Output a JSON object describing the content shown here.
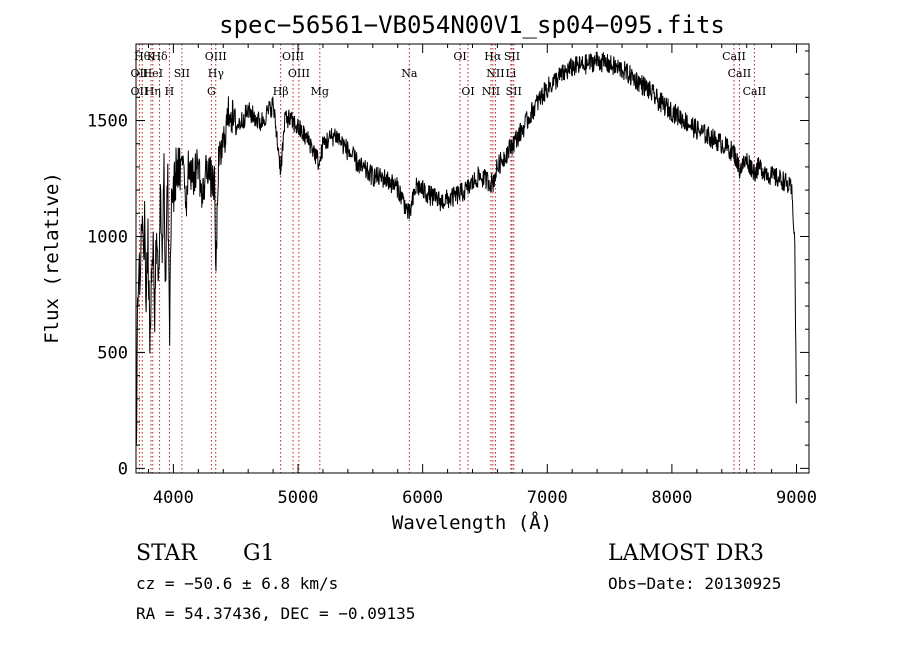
{
  "chart_data": {
    "type": "line",
    "title": "spec−56561−VB054N00V1_sp04−095.fits",
    "xlabel": "Wavelength (Å)",
    "ylabel": "Flux (relative)",
    "xlim": [
      3700,
      9100
    ],
    "ylim": [
      -20,
      1830
    ],
    "xticks": [
      4000,
      5000,
      6000,
      7000,
      8000,
      9000
    ],
    "yticks": [
      0,
      500,
      1000,
      1500
    ],
    "grid": false,
    "color": "#000000",
    "line_color": "#b22222",
    "series": [
      {
        "name": "flux",
        "anchors": [
          [
            3700,
            200
          ],
          [
            3705,
            0
          ],
          [
            3710,
            650
          ],
          [
            3720,
            900
          ],
          [
            3735,
            800
          ],
          [
            3750,
            1150
          ],
          [
            3760,
            900
          ],
          [
            3770,
            1060
          ],
          [
            3780,
            720
          ],
          [
            3795,
            1000
          ],
          [
            3810,
            560
          ],
          [
            3825,
            870
          ],
          [
            3840,
            1000
          ],
          [
            3850,
            640
          ],
          [
            3865,
            1060
          ],
          [
            3880,
            820
          ],
          [
            3895,
            1150
          ],
          [
            3910,
            860
          ],
          [
            3925,
            1300
          ],
          [
            3933,
            720
          ],
          [
            3945,
            1050
          ],
          [
            3955,
            1250
          ],
          [
            3968,
            530
          ],
          [
            3985,
            1200
          ],
          [
            4000,
            1180
          ],
          [
            4030,
            1320
          ],
          [
            4060,
            1250
          ],
          [
            4080,
            1380
          ],
          [
            4102,
            1130
          ],
          [
            4120,
            1320
          ],
          [
            4160,
            1250
          ],
          [
            4200,
            1330
          ],
          [
            4230,
            1150
          ],
          [
            4270,
            1320
          ],
          [
            4300,
            1250
          ],
          [
            4330,
            1220
          ],
          [
            4341,
            820
          ],
          [
            4360,
            1300
          ],
          [
            4400,
            1400
          ],
          [
            4450,
            1550
          ],
          [
            4500,
            1470
          ],
          [
            4550,
            1500
          ],
          [
            4600,
            1540
          ],
          [
            4700,
            1490
          ],
          [
            4800,
            1570
          ],
          [
            4861,
            1290
          ],
          [
            4900,
            1520
          ],
          [
            5000,
            1470
          ],
          [
            5100,
            1400
          ],
          [
            5175,
            1310
          ],
          [
            5200,
            1400
          ],
          [
            5300,
            1440
          ],
          [
            5400,
            1370
          ],
          [
            5500,
            1300
          ],
          [
            5600,
            1260
          ],
          [
            5700,
            1250
          ],
          [
            5800,
            1210
          ],
          [
            5893,
            1090
          ],
          [
            5950,
            1220
          ],
          [
            6050,
            1180
          ],
          [
            6150,
            1150
          ],
          [
            6250,
            1170
          ],
          [
            6350,
            1200
          ],
          [
            6450,
            1260
          ],
          [
            6563,
            1230
          ],
          [
            6600,
            1300
          ],
          [
            6700,
            1380
          ],
          [
            6800,
            1460
          ],
          [
            6900,
            1560
          ],
          [
            7000,
            1640
          ],
          [
            7100,
            1690
          ],
          [
            7200,
            1730
          ],
          [
            7300,
            1740
          ],
          [
            7400,
            1760
          ],
          [
            7500,
            1740
          ],
          [
            7600,
            1720
          ],
          [
            7700,
            1680
          ],
          [
            7800,
            1640
          ],
          [
            7900,
            1580
          ],
          [
            8000,
            1540
          ],
          [
            8100,
            1500
          ],
          [
            8200,
            1460
          ],
          [
            8300,
            1430
          ],
          [
            8400,
            1400
          ],
          [
            8500,
            1360
          ],
          [
            8542,
            1290
          ],
          [
            8600,
            1330
          ],
          [
            8662,
            1280
          ],
          [
            8700,
            1300
          ],
          [
            8800,
            1260
          ],
          [
            8900,
            1240
          ],
          [
            8960,
            1200
          ],
          [
            8985,
            1000
          ],
          [
            9000,
            200
          ]
        ]
      }
    ],
    "lines_top": [
      {
        "wl": 3750,
        "label": "Hθ"
      },
      {
        "wl": 3820,
        "label": "K"
      },
      {
        "wl": 3889,
        "label": "Hδ"
      },
      {
        "wl": 4340,
        "label": "OIII"
      },
      {
        "wl": 4960,
        "label": "OIII"
      },
      {
        "wl": 6300,
        "label": "OI"
      },
      {
        "wl": 6563,
        "label": "Hα"
      },
      {
        "wl": 6717,
        "label": "SII"
      },
      {
        "wl": 8498,
        "label": "CaII"
      }
    ],
    "lines_mid": [
      {
        "wl": 3727,
        "label": "OII"
      },
      {
        "wl": 3835,
        "label": "HeI"
      },
      {
        "wl": 4068,
        "label": "SII"
      },
      {
        "wl": 4341,
        "label": "Hγ"
      },
      {
        "wl": 5007,
        "label": "OIII"
      },
      {
        "wl": 5893,
        "label": "Na"
      },
      {
        "wl": 6584,
        "label": "NII"
      },
      {
        "wl": 6708,
        "label": "Li"
      },
      {
        "wl": 8542,
        "label": "CaII"
      }
    ],
    "lines_low": [
      {
        "wl": 3727,
        "label": "OII"
      },
      {
        "wl": 3835,
        "label": "Hη"
      },
      {
        "wl": 3968,
        "label": "H"
      },
      {
        "wl": 4305,
        "label": "G"
      },
      {
        "wl": 4861,
        "label": "Hβ"
      },
      {
        "wl": 5175,
        "label": "Mg"
      },
      {
        "wl": 6364,
        "label": "OI"
      },
      {
        "wl": 6548,
        "label": "NII"
      },
      {
        "wl": 6731,
        "label": "SII"
      },
      {
        "wl": 8662,
        "label": "CaII"
      }
    ]
  },
  "info": {
    "class": "STAR",
    "subclass": "G1",
    "survey": "LAMOST DR3",
    "cz": "cz = −50.6 ± 6.8 km/s",
    "obs_date": "Obs−Date: 20130925",
    "coords": "RA =  54.37436, DEC =  −0.09135"
  }
}
